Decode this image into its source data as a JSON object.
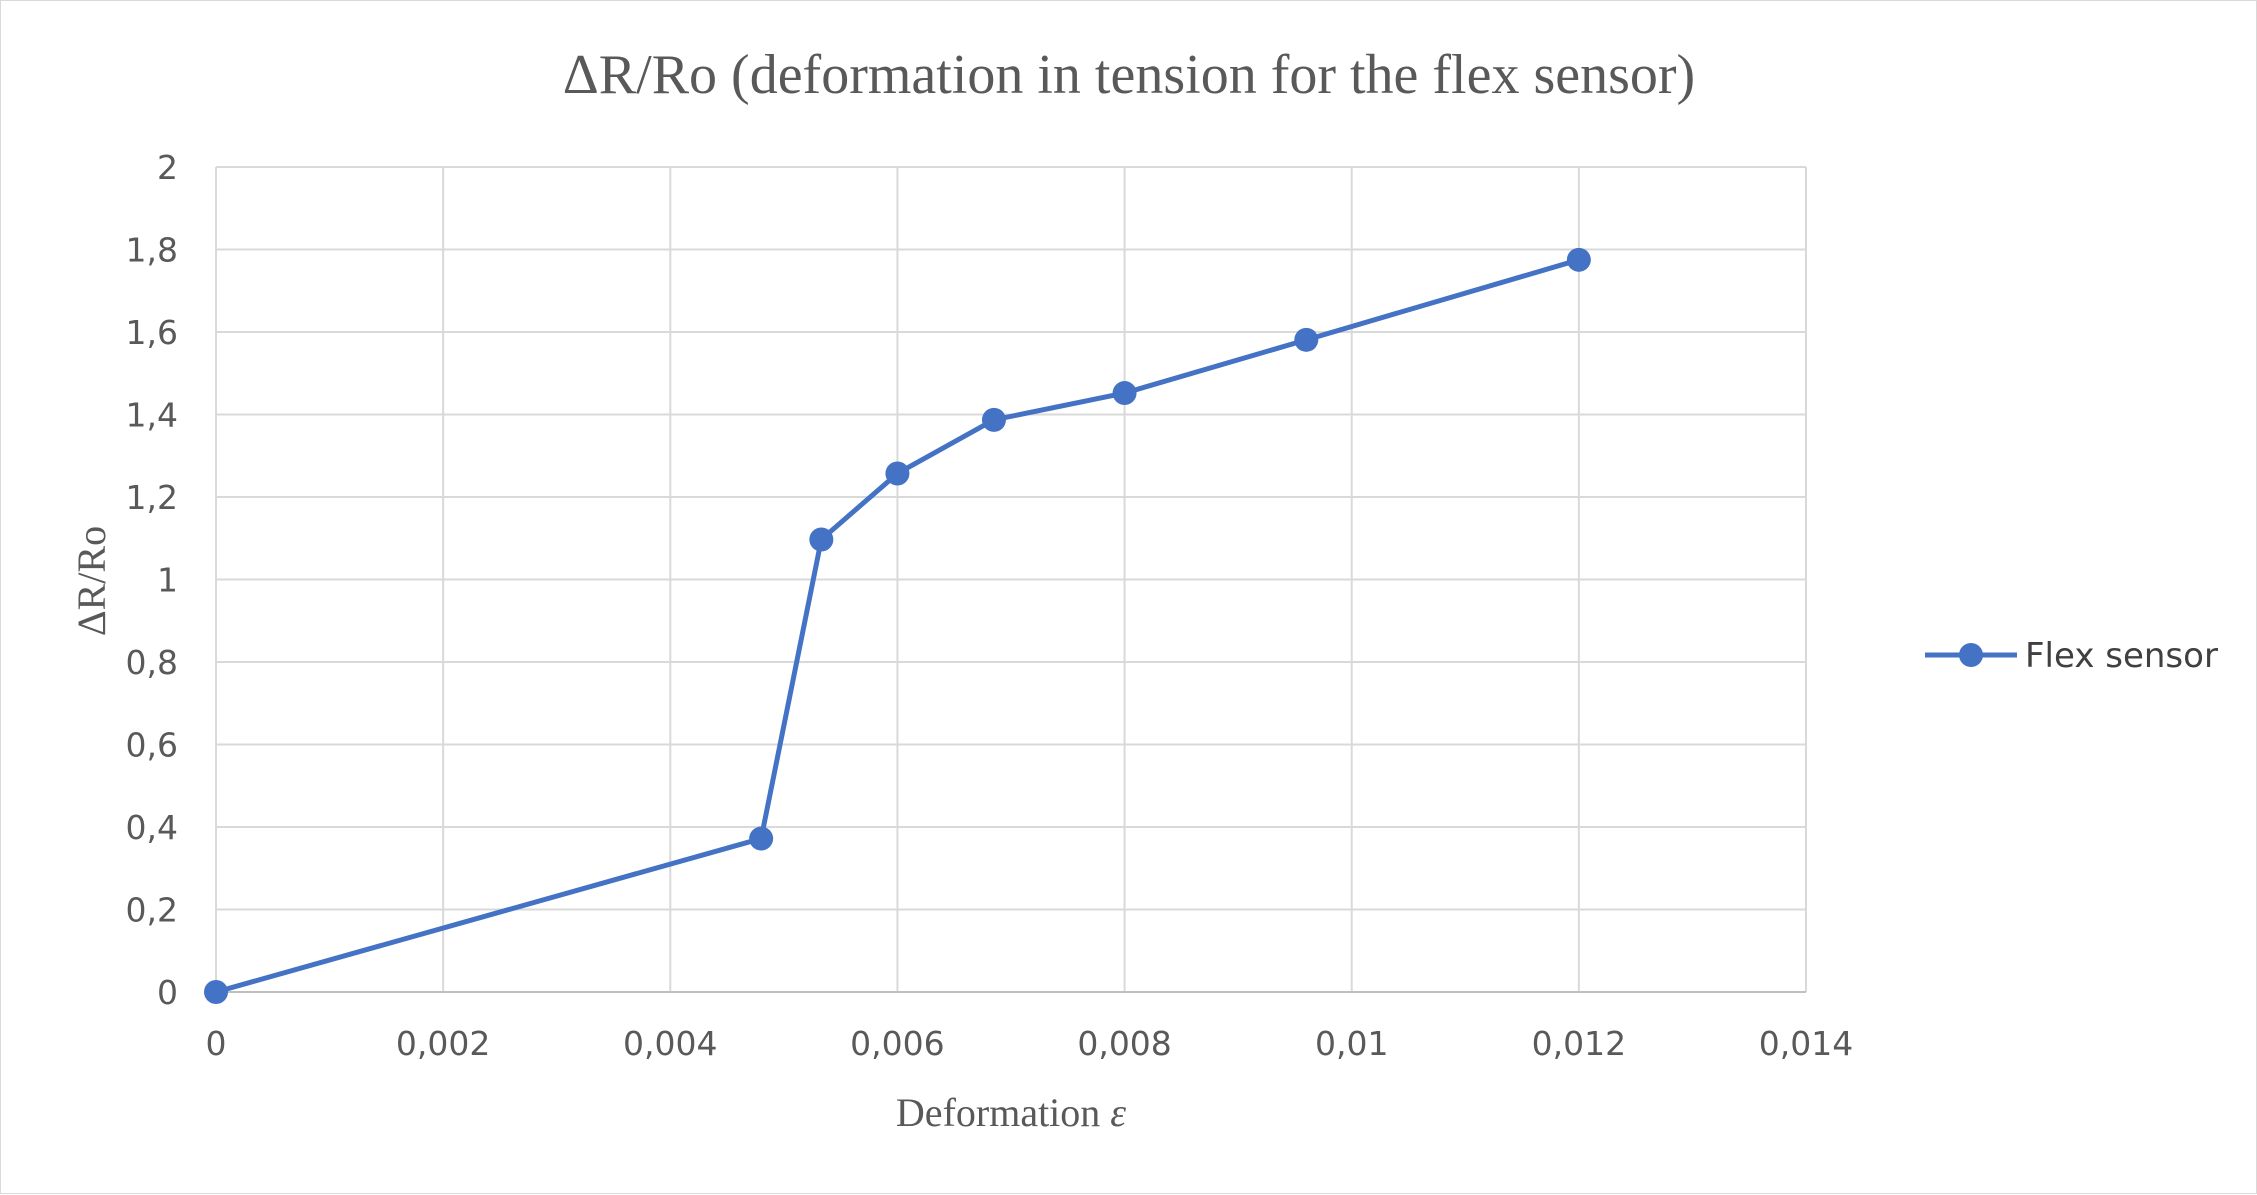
{
  "chart_data": {
    "type": "line",
    "title": "ΔR/Ro (deformation in tension for the flex sensor)",
    "xlabel_main": "Deformation ",
    "xlabel_symbol": "ε",
    "ylabel": "ΔR/Ro",
    "xlim": [
      0,
      0.014
    ],
    "ylim": [
      0,
      2
    ],
    "x_ticks": [
      0,
      0.002,
      0.004,
      0.006,
      0.008,
      0.01,
      0.012,
      0.014
    ],
    "x_tick_labels": [
      "0",
      "0,002",
      "0,004",
      "0,006",
      "0,008",
      "0,01",
      "0,012",
      "0,014"
    ],
    "y_ticks": [
      0,
      0.2,
      0.4,
      0.6,
      0.8,
      1,
      1.2,
      1.4,
      1.6,
      1.8,
      2
    ],
    "y_tick_labels": [
      "0",
      "0,2",
      "0,4",
      "0,6",
      "0,8",
      "1",
      "1,2",
      "1,4",
      "1,6",
      "1,8",
      "2"
    ],
    "grid": true,
    "legend_position": "right",
    "series": [
      {
        "name": "Flex sensor",
        "color": "#4472c4",
        "x": [
          0,
          0.0048,
          0.00533,
          0.006,
          0.00685,
          0.008,
          0.0096,
          0.012
        ],
        "y": [
          0,
          0.372,
          1.097,
          1.257,
          1.387,
          1.452,
          1.581,
          1.775
        ]
      }
    ]
  }
}
